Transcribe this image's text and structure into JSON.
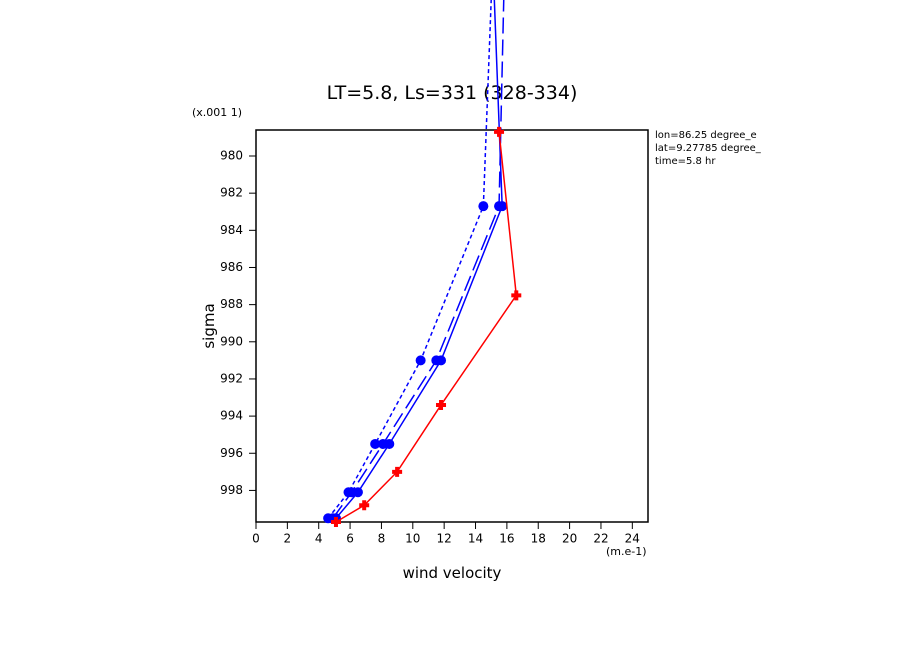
{
  "chart_data": {
    "type": "line",
    "title": "LT=5.8, Ls=331 (328-334)",
    "x_label": "wind velocity",
    "y_label": "sigma",
    "x_units": "(m.e-1)",
    "y_units": "(x.001 1)",
    "annotations": [
      "lon=86.25 degree_e",
      "lat=9.27785 degree_",
      "time=5.8 hr"
    ],
    "xlim": [
      0,
      25
    ],
    "xticks": [
      0,
      2,
      4,
      6,
      8,
      10,
      12,
      14,
      16,
      18,
      20,
      22,
      24
    ],
    "ylim": [
      978.6,
      999.7
    ],
    "y_inverted": true,
    "yticks": [
      980,
      982,
      984,
      986,
      988,
      990,
      992,
      994,
      996,
      998
    ],
    "series": [
      {
        "color": "#0000ff",
        "dash": "dotted",
        "marker": "circle",
        "x": [
          4.6,
          5.9,
          7.6,
          10.5,
          14.5,
          15.0
        ],
        "y": [
          999.5,
          998.1,
          995.5,
          991.0,
          982.7,
          971.6
        ]
      },
      {
        "color": "#0000ff",
        "dash": "solid",
        "marker": "circle",
        "x": [
          5.1,
          6.5,
          8.5,
          11.8,
          15.7,
          15.2
        ],
        "y": [
          999.5,
          998.1,
          995.5,
          991.0,
          982.7,
          971.6
        ]
      },
      {
        "color": "#0000ff",
        "dash": "longdash",
        "marker": "circle",
        "x": [
          4.9,
          6.1,
          8.1,
          11.5,
          15.5,
          15.8
        ],
        "y": [
          999.5,
          998.1,
          995.5,
          991.0,
          982.7,
          971.6
        ]
      },
      {
        "color": "#ff0000",
        "dash": "solid",
        "marker": "plus",
        "x": [
          5.1,
          6.9,
          9.0,
          11.8,
          16.6,
          15.5
        ],
        "y": [
          999.7,
          998.8,
          997.0,
          993.4,
          987.5,
          978.7
        ]
      }
    ]
  }
}
